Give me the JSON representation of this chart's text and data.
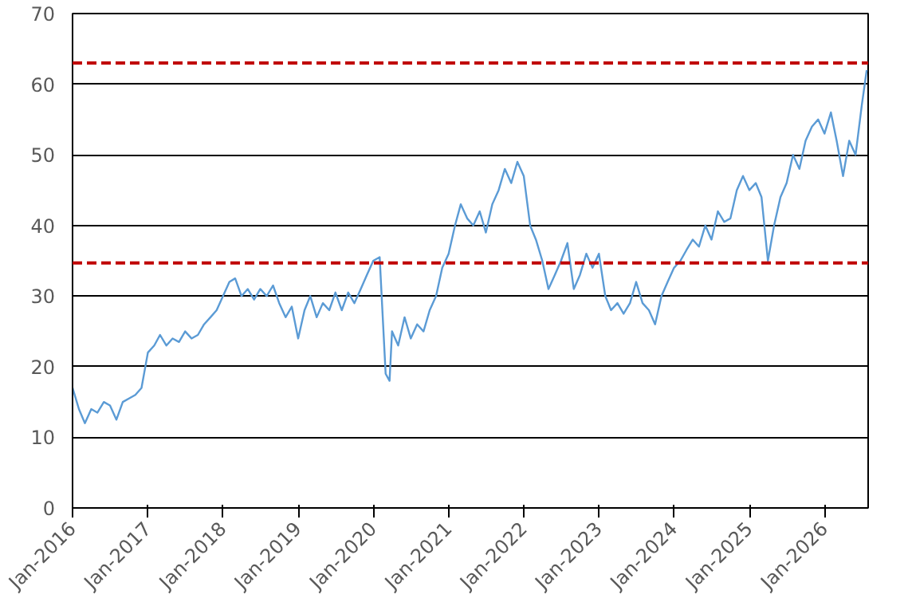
{
  "chart_data": {
    "type": "line",
    "x": [
      "2016-01",
      "2016-02",
      "2016-03",
      "2016-04",
      "2016-05",
      "2016-06",
      "2016-07",
      "2016-08",
      "2016-09",
      "2016-10",
      "2016-11",
      "2016-12",
      "2017-01",
      "2017-02",
      "2017-03",
      "2017-04",
      "2017-05",
      "2017-06",
      "2017-07",
      "2017-08",
      "2017-09",
      "2017-10",
      "2017-11",
      "2017-12",
      "2018-01",
      "2018-02",
      "2018-03",
      "2018-04",
      "2018-05",
      "2018-06",
      "2018-07",
      "2018-08",
      "2018-09",
      "2018-10",
      "2018-11",
      "2018-12",
      "2019-01",
      "2019-02",
      "2019-03",
      "2019-04",
      "2019-05",
      "2019-06",
      "2019-07",
      "2019-08",
      "2019-09",
      "2019-10",
      "2019-11",
      "2019-12",
      "2020-01",
      "2020-02",
      "2020-03",
      "2020-03-20",
      "2020-04",
      "2020-05",
      "2020-06",
      "2020-07",
      "2020-08",
      "2020-09",
      "2020-10",
      "2020-11",
      "2020-12",
      "2021-01",
      "2021-02",
      "2021-03",
      "2021-04",
      "2021-05",
      "2021-06",
      "2021-07",
      "2021-08",
      "2021-09",
      "2021-10",
      "2021-11",
      "2021-12",
      "2022-01",
      "2022-02",
      "2022-03",
      "2022-04",
      "2022-05",
      "2022-06",
      "2022-07",
      "2022-08",
      "2022-09",
      "2022-10",
      "2022-11",
      "2022-12",
      "2023-01",
      "2023-02",
      "2023-03",
      "2023-04",
      "2023-05",
      "2023-06",
      "2023-07",
      "2023-08",
      "2023-09",
      "2023-10",
      "2023-11",
      "2023-12",
      "2024-01",
      "2024-02",
      "2024-03",
      "2024-04",
      "2024-05",
      "2024-06",
      "2024-07",
      "2024-08",
      "2024-09",
      "2024-10",
      "2024-11",
      "2024-12",
      "2025-01",
      "2025-02",
      "2025-03",
      "2025-04",
      "2025-05",
      "2025-06",
      "2025-07",
      "2025-08",
      "2025-09",
      "2025-10",
      "2025-11",
      "2025-12",
      "2026-01",
      "2026-02",
      "2026-03",
      "2026-04",
      "2026-05",
      "2026-06",
      "2026-07",
      "2026-07-25"
    ],
    "series": [
      {
        "color": "#5b9bd5",
        "values": [
          17,
          14,
          12,
          14,
          13.5,
          15,
          14.5,
          12.5,
          15,
          15.5,
          16,
          17,
          22,
          23,
          24.5,
          23,
          24,
          23.5,
          25,
          24,
          24.5,
          26,
          27,
          28,
          30,
          32,
          32.5,
          30,
          31,
          29.5,
          31,
          30,
          31.5,
          29,
          27,
          28.5,
          24,
          28,
          30,
          27,
          29,
          28,
          30.5,
          28,
          30.5,
          29,
          31,
          33,
          35,
          35.5,
          19,
          18,
          25,
          23,
          27,
          24,
          26,
          25,
          28,
          30,
          34,
          36,
          40,
          43,
          41,
          40,
          42,
          39,
          43,
          45,
          48,
          46,
          49,
          47,
          40,
          38,
          35,
          31,
          33,
          35,
          37.5,
          31,
          33,
          36,
          34,
          36,
          30,
          28,
          29,
          27.5,
          29,
          32,
          29,
          28,
          26,
          30,
          32,
          34,
          35,
          36.5,
          38,
          37,
          40,
          38,
          42,
          40.5,
          41,
          45,
          47,
          45,
          46,
          44,
          35,
          40,
          44,
          46,
          50,
          48,
          52,
          54,
          55,
          53,
          56,
          52,
          47,
          52,
          50,
          57,
          62
        ]
      }
    ],
    "xlim": [
      "2016-01-01",
      "2026-08-01"
    ],
    "xticks": [
      {
        "value": "2016-01-01",
        "label": "Jan-2016"
      },
      {
        "value": "2017-01-01",
        "label": "Jan-2017"
      },
      {
        "value": "2018-01-01",
        "label": "Jan-2018"
      },
      {
        "value": "2019-01-01",
        "label": "Jan-2019"
      },
      {
        "value": "2020-01-01",
        "label": "Jan-2020"
      },
      {
        "value": "2021-01-01",
        "label": "Jan-2021"
      },
      {
        "value": "2022-01-01",
        "label": "Jan-2022"
      },
      {
        "value": "2023-01-01",
        "label": "Jan-2023"
      },
      {
        "value": "2024-01-01",
        "label": "Jan-2024"
      },
      {
        "value": "2025-01-01",
        "label": "Jan-2025"
      },
      {
        "value": "2026-01-01",
        "label": "Jan-2026"
      }
    ],
    "ylim": [
      0,
      70
    ],
    "yticks": [
      0,
      10,
      20,
      30,
      40,
      50,
      60,
      70
    ],
    "grid": "y",
    "marker": "none",
    "line_style": "solid",
    "ref_lines": [
      {
        "axis": "y",
        "value": 63,
        "color": "#c00000",
        "line_style": "dashed"
      },
      {
        "axis": "y",
        "value": 34.7,
        "color": "#c00000",
        "line_style": "dashed"
      }
    ]
  }
}
